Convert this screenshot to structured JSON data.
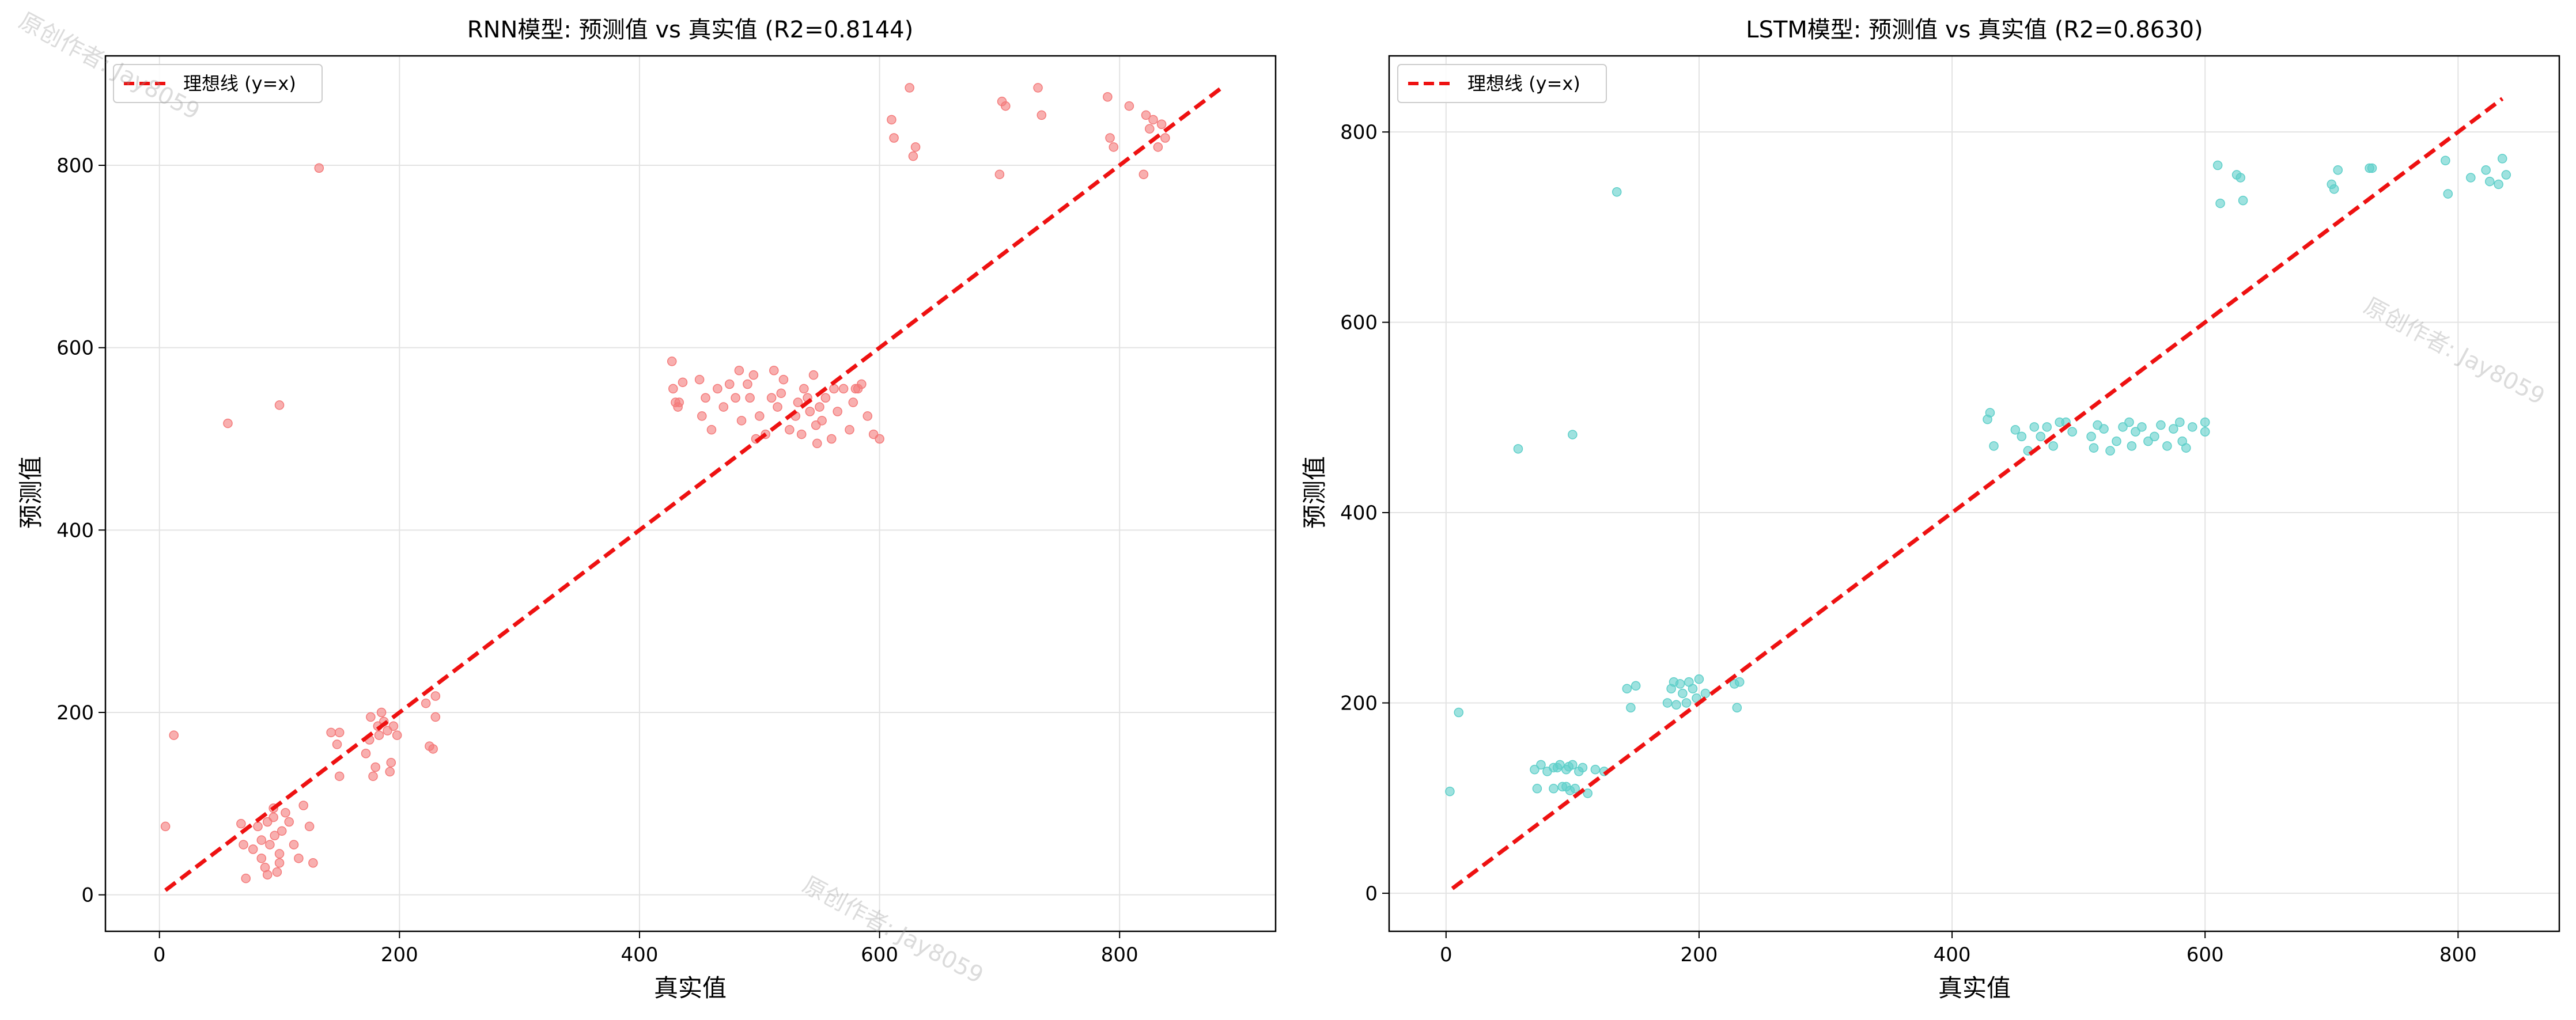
{
  "chart_data": [
    {
      "type": "scatter",
      "title": "RNN模型: 预测值 vs 真实值 (R2=0.8144)",
      "xlabel": "真实值",
      "ylabel": "预测值",
      "xlim": [
        -45,
        930
      ],
      "ylim": [
        -40,
        920
      ],
      "xticks": [
        0,
        200,
        400,
        600,
        800
      ],
      "yticks": [
        0,
        200,
        400,
        600,
        800
      ],
      "grid": true,
      "legend": {
        "placement": "top-left",
        "label": "理想线 (y=x)"
      },
      "ideal_line": {
        "x": [
          5,
          885
        ],
        "y": [
          5,
          885
        ],
        "color": "#ee1111",
        "style": "dashed"
      },
      "point_color": "#f47a7a",
      "points": [
        [
          5,
          75
        ],
        [
          12,
          175
        ],
        [
          57,
          517
        ],
        [
          100,
          537
        ],
        [
          133,
          797
        ],
        [
          68,
          78
        ],
        [
          70,
          55
        ],
        [
          72,
          18
        ],
        [
          78,
          50
        ],
        [
          82,
          75
        ],
        [
          85,
          60
        ],
        [
          88,
          30
        ],
        [
          90,
          22
        ],
        [
          92,
          55
        ],
        [
          95,
          85
        ],
        [
          96,
          65
        ],
        [
          98,
          25
        ],
        [
          100,
          35
        ],
        [
          100,
          45
        ],
        [
          102,
          70
        ],
        [
          105,
          90
        ],
        [
          108,
          80
        ],
        [
          112,
          55
        ],
        [
          116,
          40
        ],
        [
          120,
          98
        ],
        [
          125,
          75
        ],
        [
          128,
          35
        ],
        [
          95,
          95
        ],
        [
          90,
          80
        ],
        [
          85,
          40
        ],
        [
          143,
          178
        ],
        [
          148,
          165
        ],
        [
          150,
          178
        ],
        [
          150,
          130
        ],
        [
          172,
          155
        ],
        [
          175,
          170
        ],
        [
          176,
          195
        ],
        [
          178,
          130
        ],
        [
          180,
          140
        ],
        [
          182,
          185
        ],
        [
          183,
          175
        ],
        [
          185,
          200
        ],
        [
          187,
          190
        ],
        [
          190,
          180
        ],
        [
          192,
          135
        ],
        [
          193,
          145
        ],
        [
          195,
          185
        ],
        [
          198,
          175
        ],
        [
          222,
          210
        ],
        [
          225,
          163
        ],
        [
          228,
          160
        ],
        [
          230,
          195
        ],
        [
          230,
          218
        ],
        [
          427,
          585
        ],
        [
          428,
          555
        ],
        [
          430,
          540
        ],
        [
          432,
          535
        ],
        [
          433,
          540
        ],
        [
          436,
          562
        ],
        [
          450,
          565
        ],
        [
          452,
          525
        ],
        [
          455,
          545
        ],
        [
          460,
          510
        ],
        [
          465,
          555
        ],
        [
          470,
          535
        ],
        [
          475,
          560
        ],
        [
          480,
          545
        ],
        [
          483,
          575
        ],
        [
          485,
          520
        ],
        [
          490,
          560
        ],
        [
          492,
          545
        ],
        [
          495,
          570
        ],
        [
          497,
          500
        ],
        [
          500,
          525
        ],
        [
          505,
          505
        ],
        [
          510,
          545
        ],
        [
          512,
          575
        ],
        [
          515,
          535
        ],
        [
          518,
          550
        ],
        [
          520,
          565
        ],
        [
          525,
          510
        ],
        [
          530,
          525
        ],
        [
          532,
          540
        ],
        [
          535,
          505
        ],
        [
          537,
          555
        ],
        [
          540,
          545
        ],
        [
          542,
          530
        ],
        [
          545,
          570
        ],
        [
          547,
          515
        ],
        [
          548,
          495
        ],
        [
          550,
          535
        ],
        [
          552,
          520
        ],
        [
          555,
          545
        ],
        [
          560,
          500
        ],
        [
          562,
          555
        ],
        [
          565,
          530
        ],
        [
          570,
          555
        ],
        [
          575,
          510
        ],
        [
          578,
          540
        ],
        [
          580,
          555
        ],
        [
          582,
          555
        ],
        [
          585,
          560
        ],
        [
          590,
          525
        ],
        [
          595,
          505
        ],
        [
          600,
          500
        ],
        [
          610,
          850
        ],
        [
          612,
          830
        ],
        [
          625,
          885
        ],
        [
          628,
          810
        ],
        [
          630,
          820
        ],
        [
          700,
          790
        ],
        [
          702,
          870
        ],
        [
          705,
          865
        ],
        [
          732,
          885
        ],
        [
          735,
          855
        ],
        [
          790,
          875
        ],
        [
          792,
          830
        ],
        [
          795,
          820
        ],
        [
          808,
          865
        ],
        [
          820,
          790
        ],
        [
          822,
          855
        ],
        [
          825,
          840
        ],
        [
          828,
          850
        ],
        [
          832,
          820
        ],
        [
          835,
          845
        ],
        [
          838,
          830
        ]
      ]
    },
    {
      "type": "scatter",
      "title": "LSTM模型: 预测值 vs 真实值 (R2=0.8630)",
      "xlabel": "真实值",
      "ylabel": "预测值",
      "xlim": [
        -45,
        880
      ],
      "ylim": [
        -40,
        880
      ],
      "xticks": [
        0,
        200,
        400,
        600,
        800
      ],
      "yticks": [
        0,
        200,
        400,
        600,
        800
      ],
      "grid": true,
      "legend": {
        "placement": "top-left",
        "label": "理想线 (y=x)"
      },
      "ideal_line": {
        "x": [
          5,
          835
        ],
        "y": [
          5,
          835
        ],
        "color": "#ee1111",
        "style": "dashed"
      },
      "point_color": "#5ecfc9",
      "points": [
        [
          3,
          107
        ],
        [
          10,
          190
        ],
        [
          57,
          467
        ],
        [
          100,
          482
        ],
        [
          135,
          737
        ],
        [
          70,
          130
        ],
        [
          72,
          110
        ],
        [
          75,
          135
        ],
        [
          80,
          128
        ],
        [
          85,
          110
        ],
        [
          88,
          132
        ],
        [
          90,
          135
        ],
        [
          92,
          112
        ],
        [
          95,
          130
        ],
        [
          97,
          133
        ],
        [
          98,
          108
        ],
        [
          100,
          135
        ],
        [
          102,
          110
        ],
        [
          105,
          128
        ],
        [
          108,
          132
        ],
        [
          112,
          105
        ],
        [
          118,
          130
        ],
        [
          125,
          128
        ],
        [
          85,
          132
        ],
        [
          95,
          112
        ],
        [
          143,
          215
        ],
        [
          146,
          195
        ],
        [
          150,
          218
        ],
        [
          175,
          200
        ],
        [
          178,
          215
        ],
        [
          180,
          222
        ],
        [
          182,
          198
        ],
        [
          185,
          220
        ],
        [
          187,
          210
        ],
        [
          190,
          200
        ],
        [
          192,
          222
        ],
        [
          195,
          215
        ],
        [
          198,
          205
        ],
        [
          200,
          225
        ],
        [
          205,
          210
        ],
        [
          228,
          220
        ],
        [
          230,
          195
        ],
        [
          232,
          222
        ],
        [
          428,
          498
        ],
        [
          430,
          505
        ],
        [
          433,
          470
        ],
        [
          450,
          487
        ],
        [
          455,
          480
        ],
        [
          460,
          465
        ],
        [
          465,
          490
        ],
        [
          470,
          480
        ],
        [
          475,
          490
        ],
        [
          480,
          470
        ],
        [
          485,
          495
        ],
        [
          490,
          495
        ],
        [
          495,
          485
        ],
        [
          510,
          480
        ],
        [
          512,
          468
        ],
        [
          515,
          492
        ],
        [
          520,
          488
        ],
        [
          525,
          465
        ],
        [
          530,
          475
        ],
        [
          535,
          490
        ],
        [
          540,
          495
        ],
        [
          542,
          470
        ],
        [
          545,
          485
        ],
        [
          550,
          490
        ],
        [
          555,
          475
        ],
        [
          560,
          480
        ],
        [
          565,
          492
        ],
        [
          570,
          470
        ],
        [
          575,
          488
        ],
        [
          580,
          495
        ],
        [
          582,
          475
        ],
        [
          585,
          468
        ],
        [
          590,
          490
        ],
        [
          600,
          495
        ],
        [
          600,
          485
        ],
        [
          610,
          765
        ],
        [
          612,
          725
        ],
        [
          625,
          755
        ],
        [
          628,
          752
        ],
        [
          630,
          728
        ],
        [
          700,
          745
        ],
        [
          702,
          740
        ],
        [
          705,
          760
        ],
        [
          730,
          762
        ],
        [
          732,
          762
        ],
        [
          790,
          770
        ],
        [
          792,
          735
        ],
        [
          810,
          752
        ],
        [
          822,
          760
        ],
        [
          825,
          748
        ],
        [
          832,
          745
        ],
        [
          835,
          772
        ],
        [
          838,
          755
        ]
      ]
    }
  ],
  "watermarks": [
    "原创作者: Jay8059",
    "原创作者: Jay8059",
    "原创作者: Jay8059"
  ]
}
